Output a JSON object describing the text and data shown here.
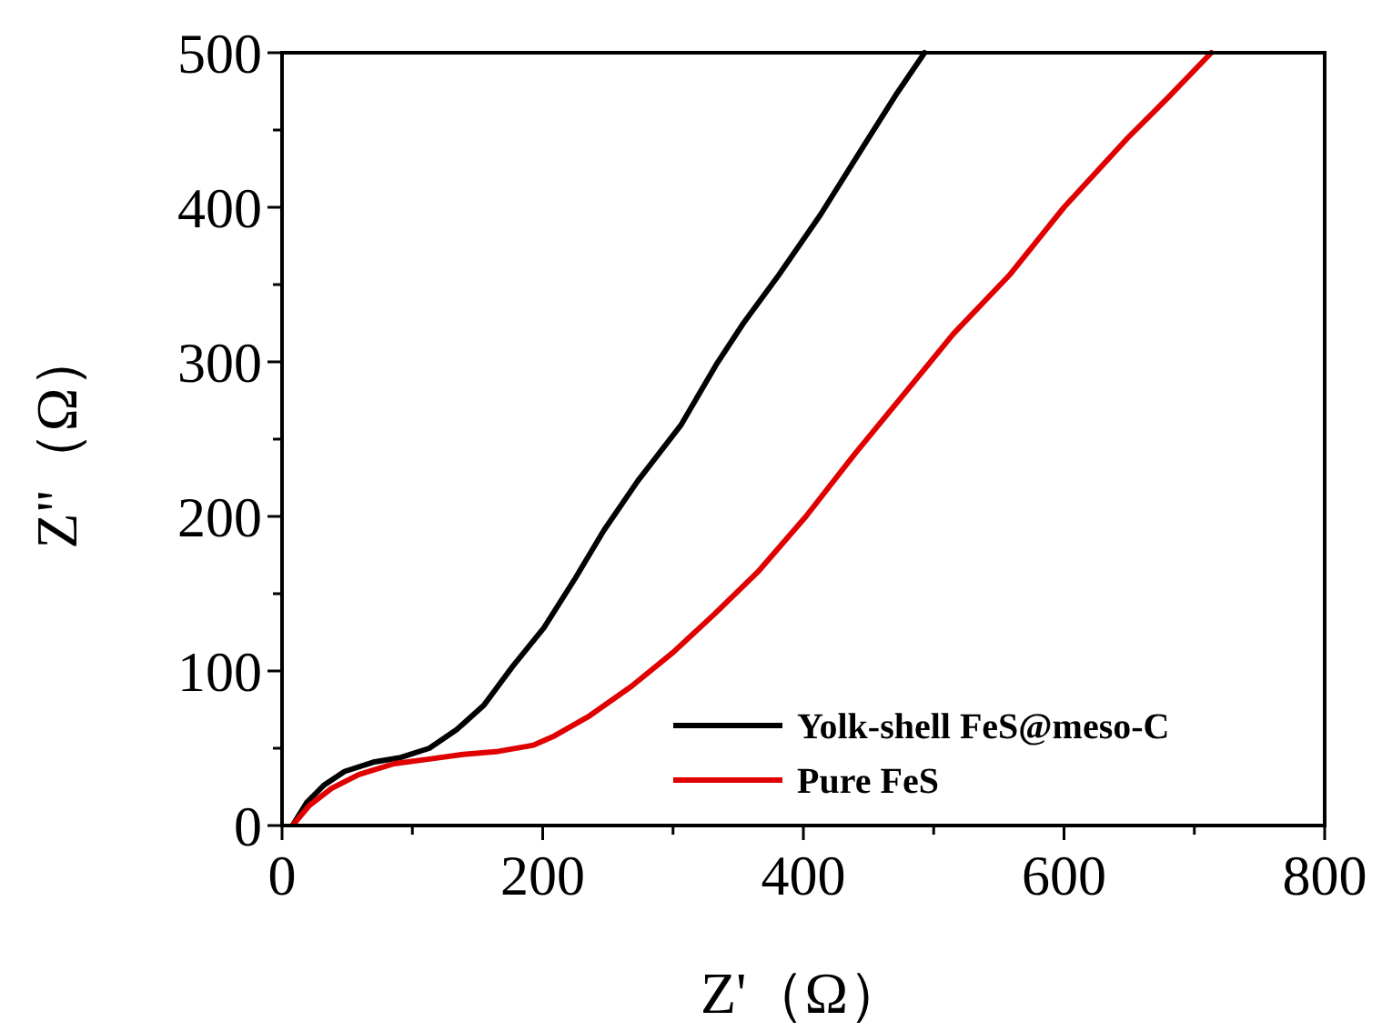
{
  "chart_data": {
    "type": "line",
    "xlabel": "Z'（Ω）",
    "ylabel": "Z\"（Ω）",
    "xlim": [
      0,
      800
    ],
    "ylim": [
      0,
      500
    ],
    "xticks": [
      0,
      {
        "value": 100,
        "label": null
      },
      200,
      {
        "value": 300,
        "label": null
      },
      400,
      {
        "value": 500,
        "label": null
      },
      600,
      {
        "value": 700,
        "label": null
      },
      800
    ],
    "yticks": [
      0,
      {
        "value": 50,
        "label": null
      },
      100,
      {
        "value": 150,
        "label": null
      },
      200,
      {
        "value": 250,
        "label": null
      },
      300,
      {
        "value": 350,
        "label": null
      },
      400,
      {
        "value": 450,
        "label": null
      },
      500
    ],
    "grid": false,
    "legend": "bottom right",
    "marker": "none",
    "line_style": "solid",
    "series": [
      {
        "name": "Yolk-shell FeS@meso-C",
        "color": "#000000",
        "x": [
          8,
          19,
          32,
          48,
          70,
          91,
          113,
          134,
          155,
          177,
          201,
          225,
          247,
          273,
          306,
          333,
          354,
          381,
          413,
          445,
          472,
          493
        ],
        "values": [
          0,
          15,
          26,
          35,
          41,
          44,
          50,
          62,
          78,
          103,
          128,
          160,
          191,
          223,
          259,
          298,
          325,
          356,
          395,
          438,
          474,
          500
        ]
      },
      {
        "name": "Pure FeS",
        "color": "#e00000",
        "x": [
          8,
          21,
          38,
          59,
          86,
          113,
          139,
          166,
          193,
          209,
          236,
          268,
          300,
          332,
          365,
          402,
          440,
          482,
          515,
          558,
          600,
          649,
          681,
          713
        ],
        "values": [
          0,
          13,
          24,
          33,
          40,
          43,
          46,
          48,
          52,
          58,
          71,
          90,
          112,
          137,
          164,
          200,
          241,
          284,
          318,
          356,
          400,
          445,
          472,
          500
        ]
      }
    ]
  }
}
